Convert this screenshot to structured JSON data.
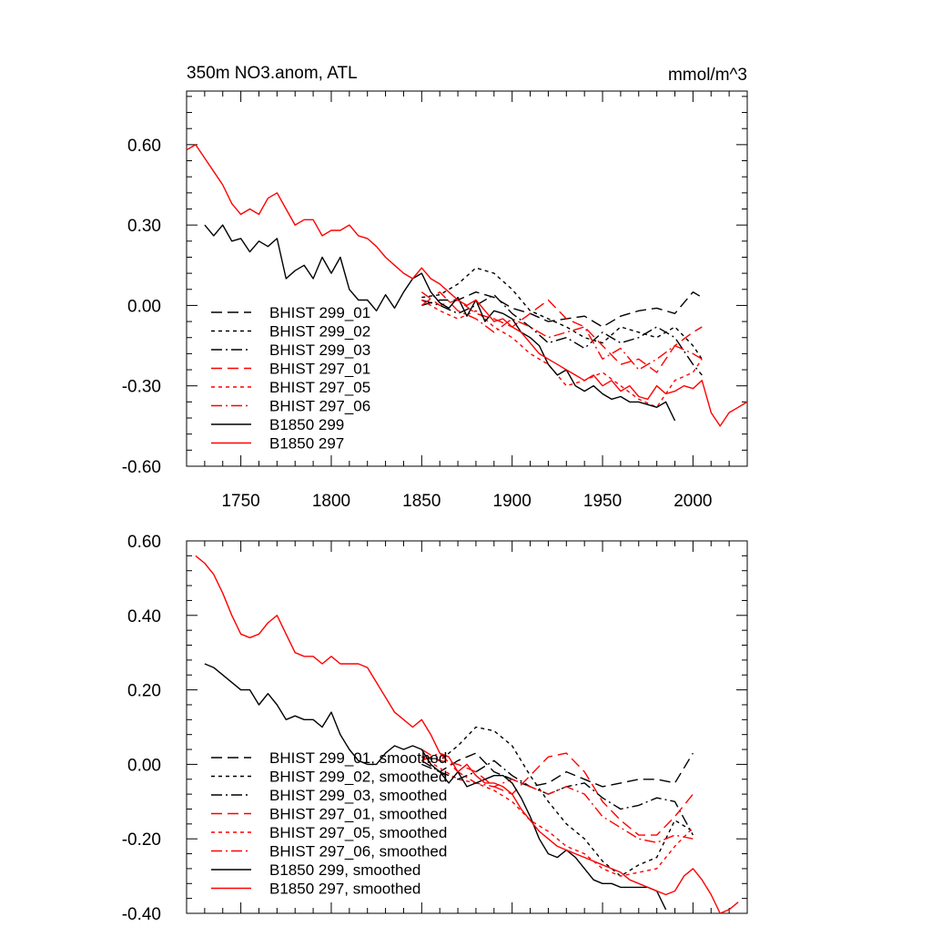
{
  "chart_data": [
    {
      "type": "line",
      "title": "350m NO3.anom, ATL",
      "units": "mmol/m^3",
      "xlim": [
        1720,
        2030
      ],
      "ylim": [
        -0.6,
        0.8
      ],
      "xticks": [
        1750,
        1800,
        1850,
        1900,
        1950,
        2000
      ],
      "yticks": [
        -0.6,
        -0.3,
        0.0,
        0.3,
        0.6
      ],
      "ytick_labels": [
        "-0.60",
        "-0.30",
        "0.00",
        "0.30",
        "0.60"
      ],
      "legend": "bottom-left",
      "series": [
        {
          "name": "BHIST 299_01",
          "color": "#000000",
          "dash": "long-dash",
          "x": [
            1850,
            1860,
            1870,
            1880,
            1890,
            1900,
            1910,
            1920,
            1930,
            1940,
            1950,
            1960,
            1970,
            1980,
            1990,
            2000,
            2005
          ],
          "y": [
            0.0,
            0.02,
            0.02,
            0.05,
            0.03,
            -0.01,
            -0.03,
            -0.06,
            -0.05,
            -0.04,
            -0.08,
            -0.04,
            -0.02,
            -0.01,
            -0.03,
            0.05,
            0.03
          ]
        },
        {
          "name": "BHIST 299_02",
          "color": "#000000",
          "dash": "short-dash",
          "x": [
            1850,
            1860,
            1870,
            1880,
            1890,
            1900,
            1910,
            1920,
            1930,
            1940,
            1950,
            1960,
            1970,
            1980,
            1990,
            2000,
            2005
          ],
          "y": [
            0.03,
            0.04,
            0.08,
            0.14,
            0.12,
            0.06,
            -0.02,
            -0.05,
            -0.08,
            -0.12,
            -0.14,
            -0.08,
            -0.1,
            -0.12,
            -0.08,
            -0.15,
            -0.2
          ]
        },
        {
          "name": "BHIST 299_03",
          "color": "#000000",
          "dash": "dash-dot",
          "x": [
            1850,
            1860,
            1870,
            1880,
            1890,
            1900,
            1910,
            1920,
            1930,
            1940,
            1950,
            1960,
            1970,
            1980,
            1990,
            2000,
            2005
          ],
          "y": [
            0.02,
            0.0,
            -0.03,
            0.0,
            0.04,
            -0.03,
            -0.08,
            -0.14,
            -0.12,
            -0.16,
            -0.1,
            -0.14,
            -0.12,
            -0.08,
            -0.12,
            -0.22,
            -0.26
          ]
        },
        {
          "name": "BHIST 297_01",
          "color": "#ff0000",
          "dash": "long-dash",
          "x": [
            1850,
            1860,
            1870,
            1880,
            1890,
            1900,
            1910,
            1920,
            1930,
            1940,
            1950,
            1960,
            1970,
            1980,
            1990,
            2000,
            2005
          ],
          "y": [
            0.05,
            0.0,
            0.02,
            -0.03,
            -0.05,
            -0.08,
            -0.03,
            0.02,
            -0.05,
            -0.08,
            -0.15,
            -0.22,
            -0.2,
            -0.25,
            -0.15,
            -0.1,
            -0.08
          ]
        },
        {
          "name": "BHIST 297_05",
          "color": "#ff0000",
          "dash": "short-dash",
          "x": [
            1850,
            1860,
            1870,
            1880,
            1890,
            1900,
            1910,
            1920,
            1930,
            1940,
            1950,
            1960,
            1970,
            1980,
            1990,
            2000,
            2005
          ],
          "y": [
            0.02,
            -0.02,
            -0.05,
            -0.02,
            -0.08,
            -0.12,
            -0.18,
            -0.22,
            -0.3,
            -0.28,
            -0.25,
            -0.3,
            -0.35,
            -0.38,
            -0.28,
            -0.25,
            -0.2
          ]
        },
        {
          "name": "BHIST 297_06",
          "color": "#ff0000",
          "dash": "dash-dot",
          "x": [
            1850,
            1860,
            1870,
            1880,
            1890,
            1900,
            1910,
            1920,
            1930,
            1940,
            1950,
            1960,
            1970,
            1980,
            1990,
            2000,
            2005
          ],
          "y": [
            0.0,
            0.05,
            -0.02,
            -0.05,
            -0.1,
            -0.05,
            -0.08,
            -0.12,
            -0.1,
            -0.08,
            -0.2,
            -0.16,
            -0.24,
            -0.2,
            -0.15,
            -0.18,
            -0.2
          ]
        },
        {
          "name": "B1850 299",
          "color": "#000000",
          "dash": "solid",
          "x": [
            1730,
            1735,
            1740,
            1745,
            1750,
            1755,
            1760,
            1765,
            1770,
            1775,
            1780,
            1785,
            1790,
            1795,
            1800,
            1805,
            1810,
            1815,
            1820,
            1825,
            1830,
            1835,
            1840,
            1845,
            1850,
            1855,
            1860,
            1865,
            1870,
            1875,
            1880,
            1885,
            1890,
            1895,
            1900,
            1905,
            1910,
            1915,
            1920,
            1925,
            1930,
            1935,
            1940,
            1945,
            1950,
            1955,
            1960,
            1965,
            1970,
            1975,
            1980,
            1985,
            1990
          ],
          "y": [
            0.3,
            0.26,
            0.3,
            0.24,
            0.25,
            0.2,
            0.24,
            0.22,
            0.25,
            0.1,
            0.13,
            0.15,
            0.1,
            0.18,
            0.12,
            0.18,
            0.06,
            0.02,
            0.02,
            -0.02,
            0.04,
            -0.01,
            0.05,
            0.1,
            0.12,
            0.05,
            0.01,
            -0.01,
            0.03,
            -0.04,
            0.02,
            -0.06,
            -0.02,
            -0.03,
            -0.05,
            -0.1,
            -0.12,
            -0.15,
            -0.22,
            -0.26,
            -0.24,
            -0.3,
            -0.32,
            -0.3,
            -0.33,
            -0.35,
            -0.34,
            -0.36,
            -0.36,
            -0.37,
            -0.38,
            -0.36,
            -0.43
          ]
        },
        {
          "name": "B1850 297",
          "color": "#ff0000",
          "dash": "solid",
          "x": [
            1720,
            1725,
            1730,
            1735,
            1740,
            1745,
            1750,
            1755,
            1760,
            1765,
            1770,
            1775,
            1780,
            1785,
            1790,
            1795,
            1800,
            1805,
            1810,
            1815,
            1820,
            1825,
            1830,
            1835,
            1840,
            1845,
            1850,
            1855,
            1860,
            1865,
            1870,
            1875,
            1880,
            1885,
            1890,
            1895,
            1900,
            1905,
            1910,
            1915,
            1920,
            1925,
            1930,
            1935,
            1940,
            1945,
            1950,
            1955,
            1960,
            1965,
            1970,
            1975,
            1980,
            1985,
            1990,
            1995,
            2000,
            2005,
            2010,
            2015,
            2020,
            2025,
            2030
          ],
          "y": [
            0.58,
            0.6,
            0.55,
            0.5,
            0.45,
            0.38,
            0.34,
            0.36,
            0.34,
            0.4,
            0.42,
            0.36,
            0.3,
            0.32,
            0.32,
            0.26,
            0.28,
            0.28,
            0.3,
            0.26,
            0.25,
            0.22,
            0.18,
            0.15,
            0.12,
            0.1,
            0.14,
            0.1,
            0.08,
            0.05,
            0.02,
            0.0,
            0.02,
            -0.02,
            -0.06,
            -0.05,
            -0.08,
            -0.1,
            -0.14,
            -0.18,
            -0.2,
            -0.22,
            -0.24,
            -0.26,
            -0.28,
            -0.26,
            -0.3,
            -0.28,
            -0.32,
            -0.3,
            -0.34,
            -0.35,
            -0.3,
            -0.33,
            -0.32,
            -0.3,
            -0.31,
            -0.28,
            -0.4,
            -0.45,
            -0.4,
            -0.38,
            -0.36
          ]
        }
      ]
    },
    {
      "type": "line",
      "title": "",
      "xlim": [
        1720,
        2030
      ],
      "ylim": [
        -0.4,
        0.6
      ],
      "yticks": [
        -0.4,
        -0.2,
        0.0,
        0.2,
        0.4,
        0.6
      ],
      "ytick_labels": [
        "-0.40",
        "-0.20",
        "0.00",
        "0.20",
        "0.40",
        "0.60"
      ],
      "legend": "bottom-left",
      "series": [
        {
          "name": "BHIST 299_01, smoothed",
          "color": "#000000",
          "dash": "long-dash",
          "x": [
            1850,
            1860,
            1870,
            1880,
            1890,
            1900,
            1910,
            1920,
            1930,
            1940,
            1950,
            1960,
            1970,
            1980,
            1990,
            2000
          ],
          "y": [
            0.0,
            -0.02,
            0.01,
            0.03,
            -0.02,
            -0.04,
            -0.06,
            -0.05,
            -0.02,
            -0.04,
            -0.06,
            -0.05,
            -0.04,
            -0.04,
            -0.05,
            0.03
          ]
        },
        {
          "name": "BHIST 299_02, smoothed",
          "color": "#000000",
          "dash": "short-dash",
          "x": [
            1850,
            1860,
            1870,
            1880,
            1890,
            1900,
            1910,
            1920,
            1930,
            1940,
            1950,
            1960,
            1970,
            1980,
            1990,
            2000
          ],
          "y": [
            0.02,
            0.01,
            0.05,
            0.1,
            0.09,
            0.05,
            -0.03,
            -0.1,
            -0.16,
            -0.2,
            -0.26,
            -0.3,
            -0.27,
            -0.25,
            -0.15,
            -0.18
          ]
        },
        {
          "name": "BHIST 299_03, smoothed",
          "color": "#000000",
          "dash": "dash-dot",
          "x": [
            1850,
            1860,
            1870,
            1880,
            1890,
            1900,
            1910,
            1920,
            1930,
            1940,
            1950,
            1960,
            1970,
            1980,
            1990,
            2000
          ],
          "y": [
            0.01,
            -0.02,
            -0.04,
            -0.02,
            0.01,
            -0.03,
            -0.06,
            -0.08,
            -0.06,
            -0.05,
            -0.09,
            -0.12,
            -0.11,
            -0.09,
            -0.1,
            -0.19
          ]
        },
        {
          "name": "BHIST 297_01, smoothed",
          "color": "#ff0000",
          "dash": "long-dash",
          "x": [
            1850,
            1860,
            1870,
            1880,
            1890,
            1900,
            1910,
            1920,
            1930,
            1940,
            1950,
            1960,
            1970,
            1980,
            1990,
            2000
          ],
          "y": [
            0.04,
            0.01,
            0.0,
            -0.02,
            -0.06,
            -0.08,
            -0.03,
            0.02,
            0.03,
            -0.02,
            -0.1,
            -0.15,
            -0.19,
            -0.19,
            -0.14,
            -0.08
          ]
        },
        {
          "name": "BHIST 297_05, smoothed",
          "color": "#ff0000",
          "dash": "short-dash",
          "x": [
            1850,
            1860,
            1870,
            1880,
            1890,
            1900,
            1910,
            1920,
            1930,
            1940,
            1950,
            1960,
            1970,
            1980,
            1990,
            2000
          ],
          "y": [
            0.02,
            -0.01,
            -0.04,
            -0.05,
            -0.07,
            -0.1,
            -0.15,
            -0.18,
            -0.22,
            -0.24,
            -0.28,
            -0.3,
            -0.29,
            -0.28,
            -0.22,
            -0.17
          ]
        },
        {
          "name": "BHIST 297_06, smoothed",
          "color": "#ff0000",
          "dash": "dash-dot",
          "x": [
            1850,
            1860,
            1870,
            1880,
            1890,
            1900,
            1910,
            1920,
            1930,
            1940,
            1950,
            1960,
            1970,
            1980,
            1990,
            2000
          ],
          "y": [
            0.01,
            0.03,
            -0.02,
            -0.05,
            -0.06,
            -0.04,
            -0.06,
            -0.08,
            -0.06,
            -0.08,
            -0.14,
            -0.17,
            -0.2,
            -0.21,
            -0.19,
            -0.2
          ]
        },
        {
          "name": "B1850 299, smoothed",
          "color": "#000000",
          "dash": "solid",
          "x": [
            1730,
            1735,
            1740,
            1745,
            1750,
            1755,
            1760,
            1765,
            1770,
            1775,
            1780,
            1785,
            1790,
            1795,
            1800,
            1805,
            1810,
            1815,
            1820,
            1825,
            1830,
            1835,
            1840,
            1845,
            1850,
            1855,
            1860,
            1865,
            1870,
            1875,
            1880,
            1885,
            1890,
            1895,
            1900,
            1905,
            1910,
            1915,
            1920,
            1925,
            1930,
            1935,
            1940,
            1945,
            1950,
            1955,
            1960,
            1965,
            1970,
            1975,
            1980,
            1985
          ],
          "y": [
            0.27,
            0.26,
            0.24,
            0.22,
            0.2,
            0.2,
            0.16,
            0.19,
            0.16,
            0.12,
            0.13,
            0.12,
            0.12,
            0.1,
            0.14,
            0.08,
            0.04,
            0.01,
            0.0,
            0.0,
            0.03,
            0.05,
            0.04,
            0.05,
            0.04,
            0.0,
            -0.02,
            -0.05,
            -0.02,
            -0.06,
            -0.05,
            -0.04,
            -0.03,
            -0.03,
            -0.05,
            -0.09,
            -0.14,
            -0.2,
            -0.24,
            -0.25,
            -0.23,
            -0.25,
            -0.28,
            -0.31,
            -0.32,
            -0.32,
            -0.33,
            -0.33,
            -0.33,
            -0.33,
            -0.34,
            -0.39
          ]
        },
        {
          "name": "B1850 297, smoothed",
          "color": "#ff0000",
          "dash": "solid",
          "x": [
            1725,
            1730,
            1735,
            1740,
            1745,
            1750,
            1755,
            1760,
            1765,
            1770,
            1775,
            1780,
            1785,
            1790,
            1795,
            1800,
            1805,
            1810,
            1815,
            1820,
            1825,
            1830,
            1835,
            1840,
            1845,
            1850,
            1855,
            1860,
            1865,
            1870,
            1875,
            1880,
            1885,
            1890,
            1895,
            1900,
            1905,
            1910,
            1915,
            1920,
            1925,
            1930,
            1935,
            1940,
            1945,
            1950,
            1955,
            1960,
            1965,
            1970,
            1975,
            1980,
            1985,
            1990,
            1995,
            2000,
            2005,
            2010,
            2015,
            2020,
            2025
          ],
          "y": [
            0.56,
            0.54,
            0.51,
            0.46,
            0.4,
            0.35,
            0.34,
            0.35,
            0.38,
            0.4,
            0.35,
            0.3,
            0.29,
            0.29,
            0.27,
            0.29,
            0.27,
            0.27,
            0.27,
            0.26,
            0.22,
            0.18,
            0.14,
            0.12,
            0.1,
            0.12,
            0.08,
            0.03,
            0.02,
            -0.02,
            0.0,
            -0.03,
            -0.05,
            -0.05,
            -0.06,
            -0.08,
            -0.12,
            -0.15,
            -0.18,
            -0.2,
            -0.22,
            -0.23,
            -0.24,
            -0.25,
            -0.26,
            -0.27,
            -0.28,
            -0.29,
            -0.31,
            -0.32,
            -0.33,
            -0.34,
            -0.35,
            -0.34,
            -0.3,
            -0.28,
            -0.31,
            -0.35,
            -0.4,
            -0.39,
            -0.37
          ]
        }
      ]
    }
  ]
}
